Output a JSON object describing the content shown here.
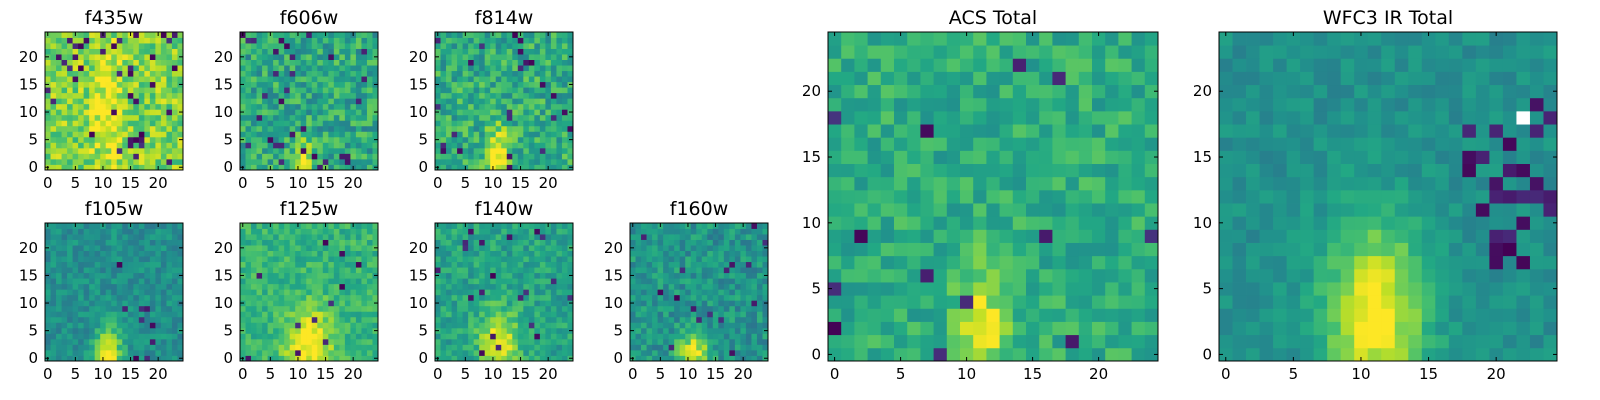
{
  "chart_data": [
    {
      "type": "heatmap",
      "title": "f435w",
      "colormap": "viridis",
      "grid_size": 25,
      "xlim": [
        0,
        24
      ],
      "ylim": [
        0,
        24
      ],
      "xticks": [
        0,
        5,
        10,
        15,
        20
      ],
      "yticks": [
        0,
        5,
        10,
        15,
        20
      ],
      "feature": "bright noisy field, faint central source",
      "bright_source": [
        11,
        10
      ]
    },
    {
      "type": "heatmap",
      "title": "f606w",
      "colormap": "viridis",
      "grid_size": 25,
      "xlim": [
        0,
        24
      ],
      "ylim": [
        0,
        24
      ],
      "xticks": [
        0,
        5,
        10,
        15,
        20
      ],
      "yticks": [
        0,
        5,
        10,
        15,
        20
      ],
      "feature": "noisy field, bright source at bottom center",
      "bright_source": [
        11,
        1
      ]
    },
    {
      "type": "heatmap",
      "title": "f814w",
      "colormap": "viridis",
      "grid_size": 25,
      "xlim": [
        0,
        24
      ],
      "ylim": [
        0,
        24
      ],
      "xticks": [
        0,
        5,
        10,
        15,
        20
      ],
      "yticks": [
        0,
        5,
        10,
        15,
        20
      ],
      "feature": "noisy field, bright source at bottom center",
      "bright_source": [
        11,
        2
      ]
    },
    {
      "type": "heatmap",
      "title": "f105w",
      "colormap": "viridis",
      "grid_size": 25,
      "xlim": [
        0,
        24
      ],
      "ylim": [
        0,
        24
      ],
      "xticks": [
        0,
        5,
        10,
        15,
        20
      ],
      "yticks": [
        0,
        5,
        10,
        15,
        20
      ],
      "feature": "smooth field, source at bottom center",
      "bright_source": [
        11,
        1
      ]
    },
    {
      "type": "heatmap",
      "title": "f125w",
      "colormap": "viridis",
      "grid_size": 25,
      "xlim": [
        0,
        24
      ],
      "ylim": [
        0,
        24
      ],
      "xticks": [
        0,
        5,
        10,
        15,
        20
      ],
      "yticks": [
        0,
        5,
        10,
        15,
        20
      ],
      "feature": "extended bright source at bottom center",
      "bright_source": [
        12,
        3
      ]
    },
    {
      "type": "heatmap",
      "title": "f140w",
      "colormap": "viridis",
      "grid_size": 25,
      "xlim": [
        0,
        24
      ],
      "ylim": [
        0,
        24
      ],
      "xticks": [
        0,
        5,
        10,
        15,
        20
      ],
      "yticks": [
        0,
        5,
        10,
        15,
        20
      ],
      "feature": "extended source at bottom center",
      "bright_source": [
        11,
        3
      ]
    },
    {
      "type": "heatmap",
      "title": "f160w",
      "colormap": "viridis",
      "grid_size": 25,
      "xlim": [
        0,
        24
      ],
      "ylim": [
        0,
        24
      ],
      "xticks": [
        0,
        5,
        10,
        15,
        20
      ],
      "yticks": [
        0,
        5,
        10,
        15,
        20
      ],
      "feature": "source at bottom center",
      "bright_source": [
        11,
        1
      ]
    },
    {
      "type": "heatmap",
      "title": "ACS Total",
      "colormap": "viridis",
      "grid_size": 25,
      "xlim": [
        0,
        24
      ],
      "ylim": [
        0,
        24
      ],
      "xticks": [
        0,
        5,
        10,
        15,
        20
      ],
      "yticks": [
        0,
        5,
        10,
        15,
        20
      ],
      "feature": "bright vertical source at bottom center",
      "bright_source": [
        11,
        2
      ]
    },
    {
      "type": "heatmap",
      "title": "WFC3 IR Total",
      "colormap": "viridis",
      "grid_size": 25,
      "xlim": [
        0,
        24
      ],
      "ylim": [
        0,
        24
      ],
      "xticks": [
        0,
        5,
        10,
        15,
        20
      ],
      "yticks": [
        0,
        5,
        10,
        15,
        20
      ],
      "feature": "bright source at bottom center, dark pixels at right",
      "bright_source": [
        11,
        3
      ]
    }
  ]
}
